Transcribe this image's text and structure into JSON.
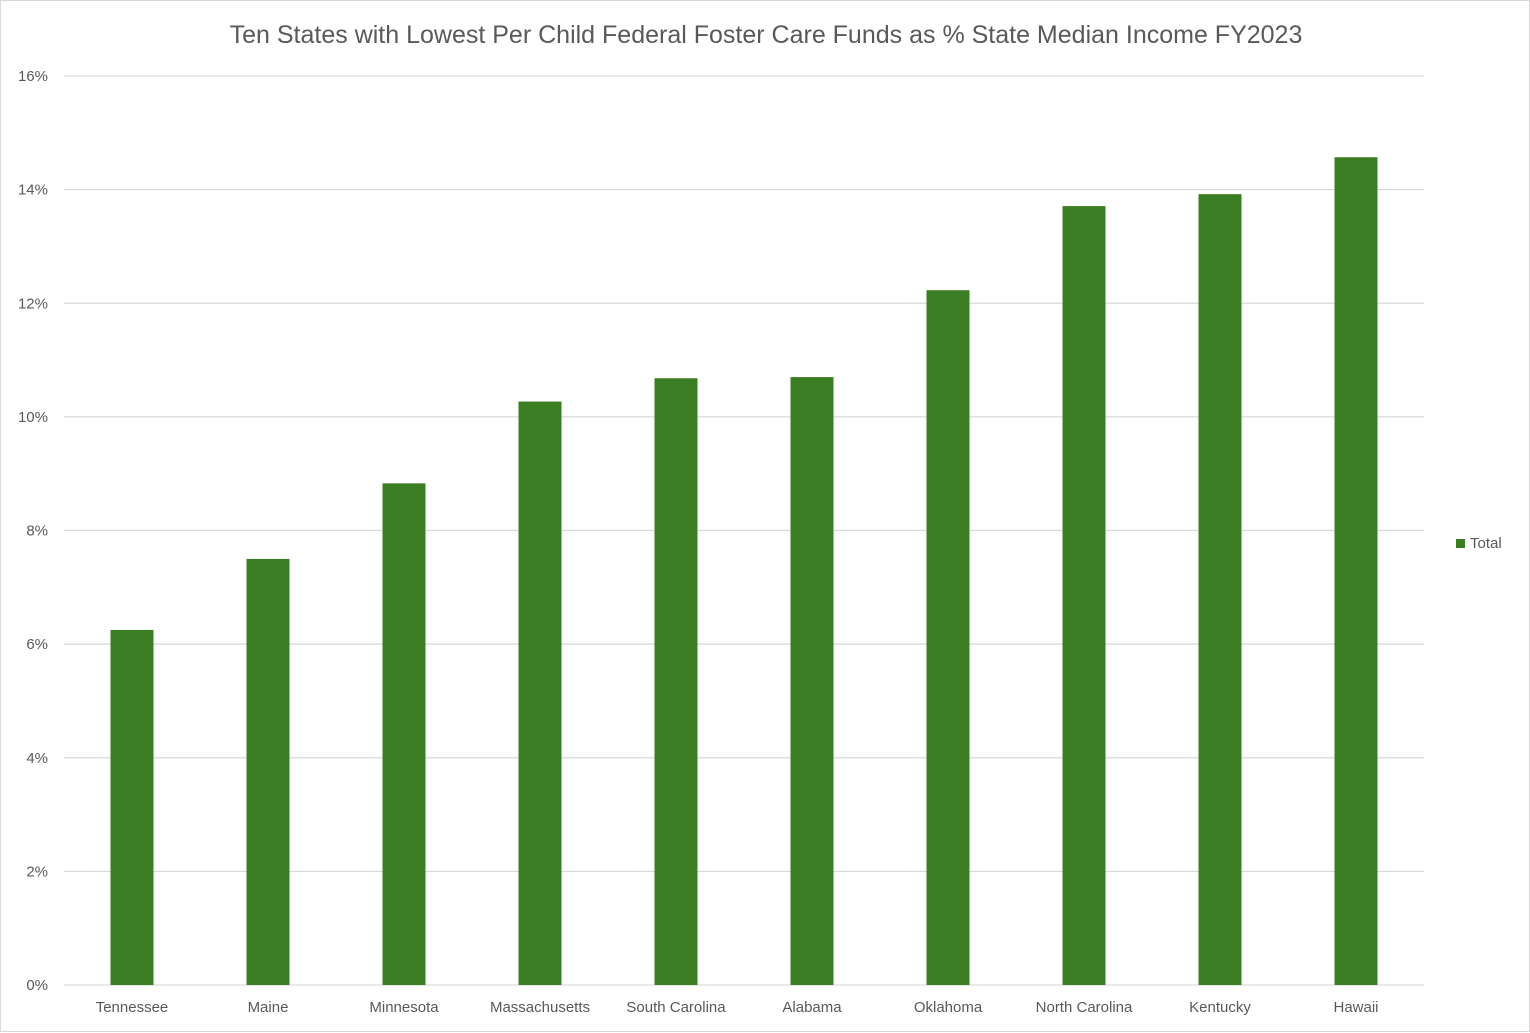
{
  "chart_data": {
    "type": "bar",
    "title": "Ten States with Lowest Per Child Federal Foster Care Funds as % State Median Income FY2023",
    "categories": [
      "Tennessee",
      "Maine",
      "Minnesota",
      "Massachusetts",
      "South Carolina",
      "Alabama",
      "Oklahoma",
      "North Carolina",
      "Kentucky",
      "Hawaii"
    ],
    "series": [
      {
        "name": "Total",
        "color": "#3b7d23",
        "values": [
          6.25,
          7.5,
          8.83,
          10.27,
          10.68,
          10.7,
          12.23,
          13.71,
          13.92,
          14.57
        ]
      }
    ],
    "ylim": [
      0,
      16
    ],
    "yticks": [
      "0%",
      "2%",
      "4%",
      "6%",
      "8%",
      "10%",
      "12%",
      "14%",
      "16%"
    ],
    "grid": true,
    "legend_position": "right",
    "gridline_color": "#d9d9d9"
  }
}
